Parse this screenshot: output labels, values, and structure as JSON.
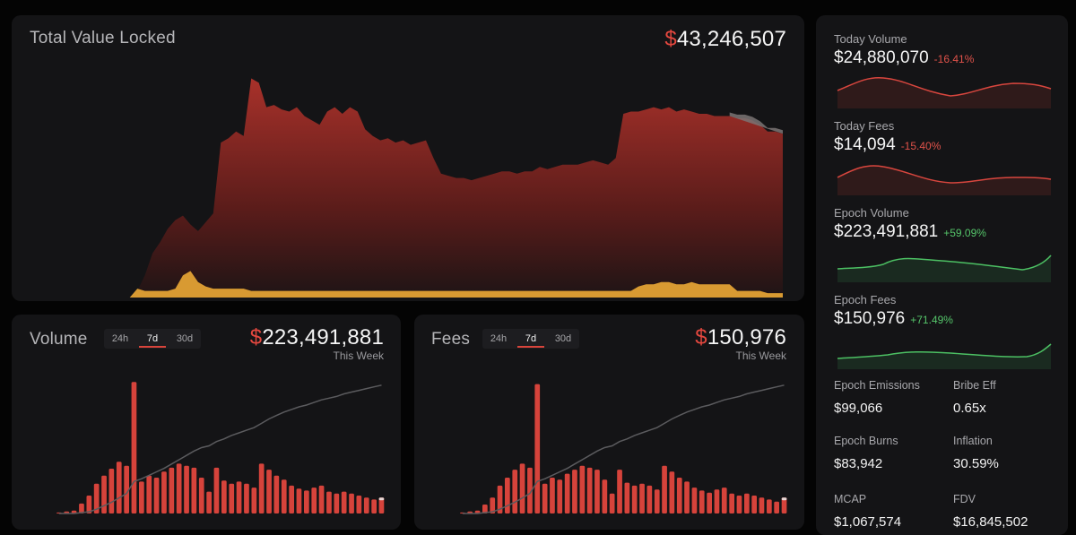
{
  "tvl": {
    "title": "Total Value Locked",
    "currency": "$",
    "value": "43,246,507"
  },
  "volume": {
    "title": "Volume",
    "tabs": [
      "24h",
      "7d",
      "30d"
    ],
    "active_tab": "7d",
    "currency": "$",
    "value": "223,491,881",
    "period": "This Week"
  },
  "fees": {
    "title": "Fees",
    "tabs": [
      "24h",
      "7d",
      "30d"
    ],
    "active_tab": "7d",
    "currency": "$",
    "value": "150,976",
    "period": "This Week"
  },
  "stats": {
    "today_volume": {
      "label": "Today Volume",
      "value": "$24,880,070",
      "change": "-16.41%"
    },
    "today_fees": {
      "label": "Today Fees",
      "value": "$14,094",
      "change": "-15.40%"
    },
    "epoch_volume": {
      "label": "Epoch Volume",
      "value": "$223,491,881",
      "change": "+59.09%"
    },
    "epoch_fees": {
      "label": "Epoch Fees",
      "value": "$150,976",
      "change": "+71.49%"
    }
  },
  "metrics": {
    "epoch_emissions": {
      "label": "Epoch Emissions",
      "value": "$99,066"
    },
    "bribe_eff": {
      "label": "Bribe Eff",
      "value": "0.65x"
    },
    "epoch_burns": {
      "label": "Epoch Burns",
      "value": "$83,942"
    },
    "inflation": {
      "label": "Inflation",
      "value": "30.59%"
    },
    "mcap": {
      "label": "MCAP",
      "value": "$1,067,574"
    },
    "fdv": {
      "label": "FDV",
      "value": "$16,845,502"
    }
  },
  "colors": {
    "accent": "#e5483f",
    "bar": "#d6433b",
    "positive": "#55c56a",
    "negative": "#e0524a",
    "yellow": "#d89a32"
  },
  "chart_data": [
    {
      "type": "area",
      "title": "Total Value Locked",
      "series": [
        {
          "values": [
            0,
            0,
            0,
            0,
            0,
            0,
            0,
            0,
            0,
            0,
            0,
            3,
            10,
            20,
            25,
            31,
            35,
            37,
            33,
            30,
            34,
            38,
            70,
            72,
            75,
            73,
            99,
            97,
            86,
            87,
            85,
            84,
            86,
            82,
            80,
            78,
            84,
            86,
            83,
            86,
            84,
            76,
            73,
            71,
            72,
            70,
            71,
            69,
            70,
            71,
            63,
            56,
            55,
            54,
            54,
            53,
            54,
            55,
            56,
            57,
            57,
            56,
            57,
            57,
            59,
            58,
            59,
            60,
            60,
            60,
            61,
            62,
            61,
            60,
            63,
            83,
            84,
            84,
            85,
            86,
            85,
            86,
            84,
            85,
            84,
            83,
            83,
            82,
            82,
            82,
            81,
            81,
            80,
            78,
            75,
            75,
            74
          ]
        },
        {
          "values": [
            0,
            0,
            0,
            0,
            0,
            0,
            0,
            0,
            0,
            0,
            0,
            4,
            3,
            3,
            3,
            3,
            4,
            10,
            12,
            7,
            5,
            4,
            4,
            4,
            4,
            4,
            3,
            3,
            3,
            3,
            3,
            3,
            3,
            3,
            3,
            3,
            3,
            3,
            3,
            3,
            3,
            3,
            3,
            3,
            3,
            3,
            3,
            3,
            3,
            3,
            3,
            3,
            3,
            3,
            3,
            3,
            3,
            3,
            3,
            3,
            3,
            3,
            3,
            3,
            3,
            3,
            3,
            3,
            3,
            3,
            3,
            3,
            3,
            3,
            3,
            3,
            3,
            5,
            6,
            6,
            7,
            7,
            6,
            6,
            7,
            6,
            6,
            6,
            6,
            6,
            3,
            3,
            3,
            3,
            2,
            2,
            2
          ]
        }
      ]
    },
    {
      "type": "bar",
      "title": "Volume",
      "values": [
        1,
        2,
        3,
        10,
        18,
        30,
        38,
        45,
        52,
        48,
        132,
        32,
        38,
        36,
        42,
        46,
        50,
        48,
        46,
        36,
        22,
        46,
        33,
        30,
        32,
        30,
        26,
        50,
        44,
        38,
        34,
        28,
        25,
        23,
        26,
        28,
        22,
        20,
        22,
        20,
        18,
        16,
        14,
        16
      ],
      "cumulative": [
        0,
        0,
        0,
        1,
        2,
        5,
        9,
        13,
        18,
        23,
        37,
        40,
        44,
        48,
        52,
        57,
        62,
        67,
        72,
        76,
        78,
        83,
        86,
        90,
        93,
        96,
        99,
        104,
        109,
        113,
        117,
        120,
        123,
        125,
        128,
        131,
        133,
        135,
        138,
        140,
        142,
        144,
        146,
        148
      ]
    },
    {
      "type": "bar",
      "title": "Fees",
      "values": [
        1,
        2,
        3,
        9,
        16,
        28,
        36,
        44,
        50,
        46,
        130,
        30,
        36,
        34,
        40,
        44,
        48,
        46,
        44,
        34,
        20,
        44,
        31,
        28,
        30,
        28,
        24,
        48,
        42,
        36,
        32,
        26,
        23,
        21,
        24,
        26,
        20,
        18,
        20,
        18,
        16,
        14,
        12,
        16
      ],
      "cumulative": [
        0,
        0,
        0,
        1,
        2,
        5,
        9,
        13,
        18,
        23,
        37,
        40,
        44,
        48,
        52,
        57,
        62,
        67,
        72,
        76,
        78,
        83,
        86,
        90,
        93,
        96,
        99,
        104,
        109,
        113,
        117,
        120,
        123,
        125,
        128,
        131,
        133,
        135,
        138,
        140,
        142,
        144,
        146,
        148
      ]
    }
  ]
}
